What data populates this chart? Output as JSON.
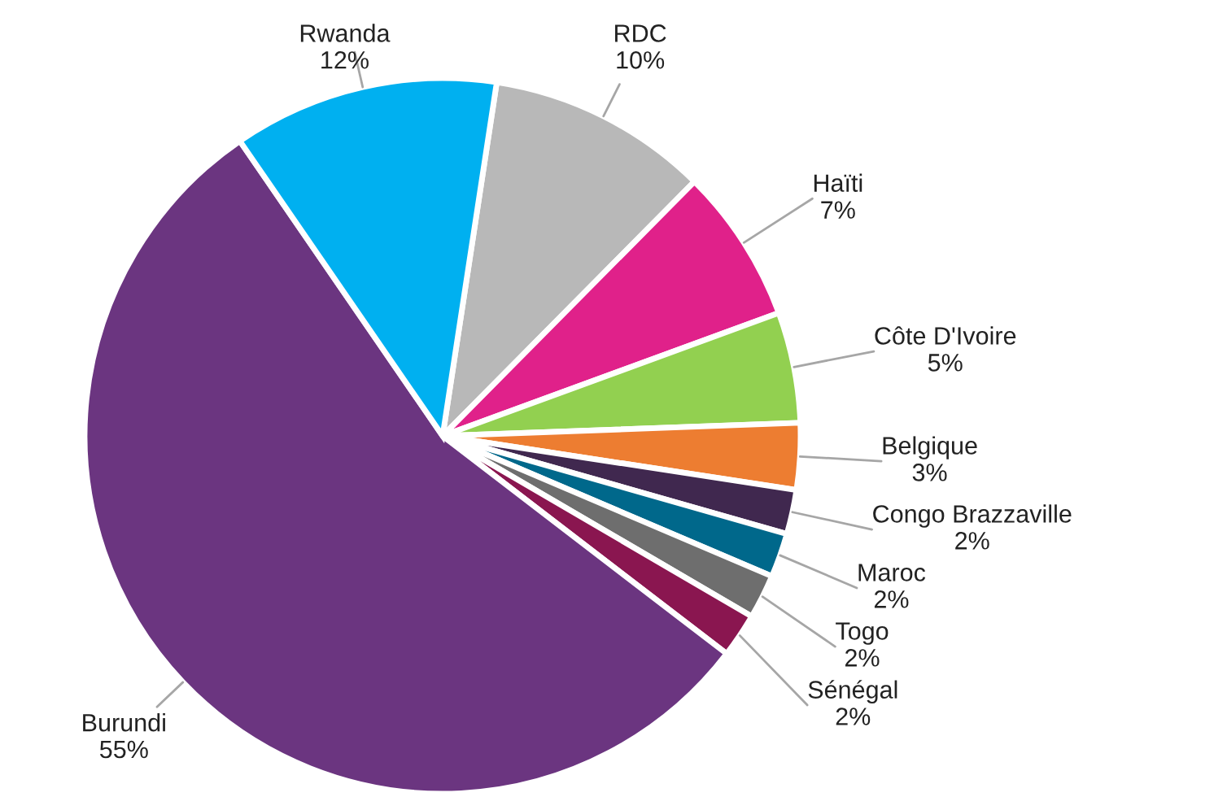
{
  "chart_data": {
    "type": "pie",
    "categories": [
      "RDC",
      "Haïti",
      "Côte D'Ivoire",
      "Belgique",
      "Congo Brazzaville",
      "Maroc",
      "Togo",
      "Sénégal",
      "Burundi",
      "Rwanda"
    ],
    "values": [
      10,
      7,
      5,
      3,
      2,
      2,
      2,
      2,
      55,
      12
    ],
    "value_labels": [
      "10%",
      "7%",
      "5%",
      "3%",
      "2%",
      "2%",
      "2%",
      "2%",
      "55%",
      "12%"
    ],
    "colors": [
      "#b8b8b8",
      "#e0218a",
      "#92d050",
      "#ed7d31",
      "#40284f",
      "#00688b",
      "#6e6e6e",
      "#8a1650",
      "#6b3580",
      "#00b0f0"
    ],
    "legend": false
  }
}
